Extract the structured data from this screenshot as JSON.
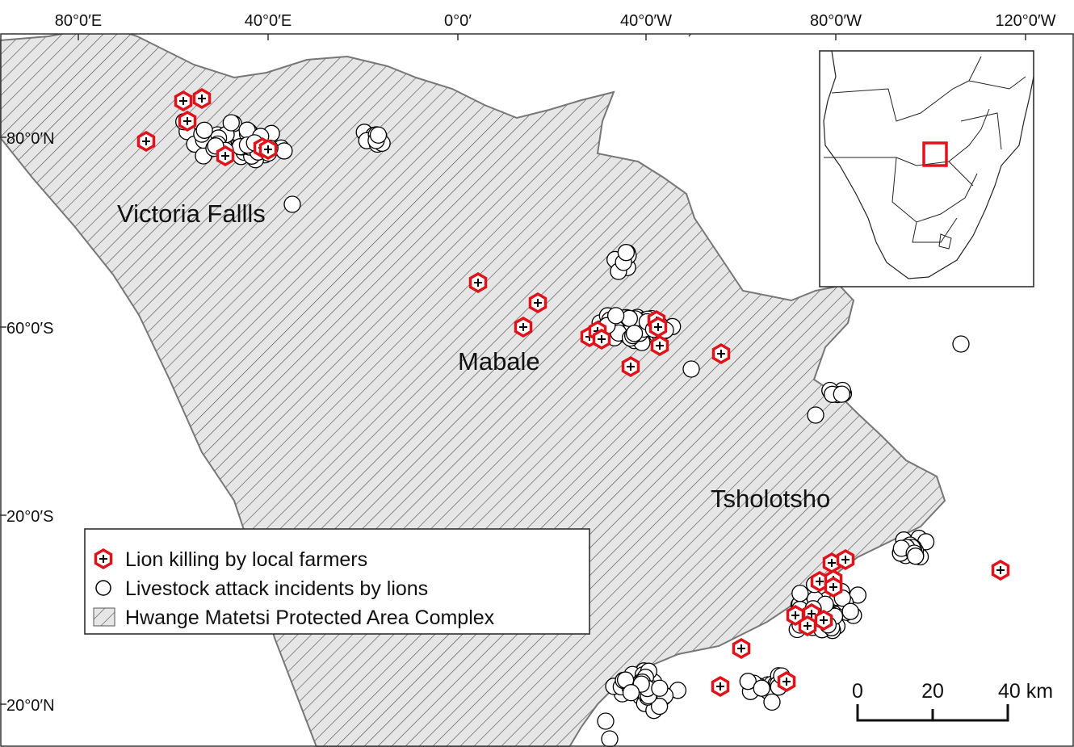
{
  "map": {
    "top_axis_labels": [
      "80°0′E",
      "40°0′E",
      "0°0′",
      "40°0′W",
      "80°0′W",
      "120°0′W"
    ],
    "left_axis_labels": [
      "80°0′N",
      "60°0′S",
      "20°0′S",
      "20°0′N"
    ],
    "places": [
      "Victoria Fallls",
      "Mabale",
      "Tsholotsho"
    ],
    "legend": [
      "Lion killing by local farmers",
      "Livestock attack incidents by lions",
      "Hwange Matetsi Protected Area Complex"
    ],
    "scale_bar": [
      "0",
      "20",
      "40 km"
    ]
  }
}
